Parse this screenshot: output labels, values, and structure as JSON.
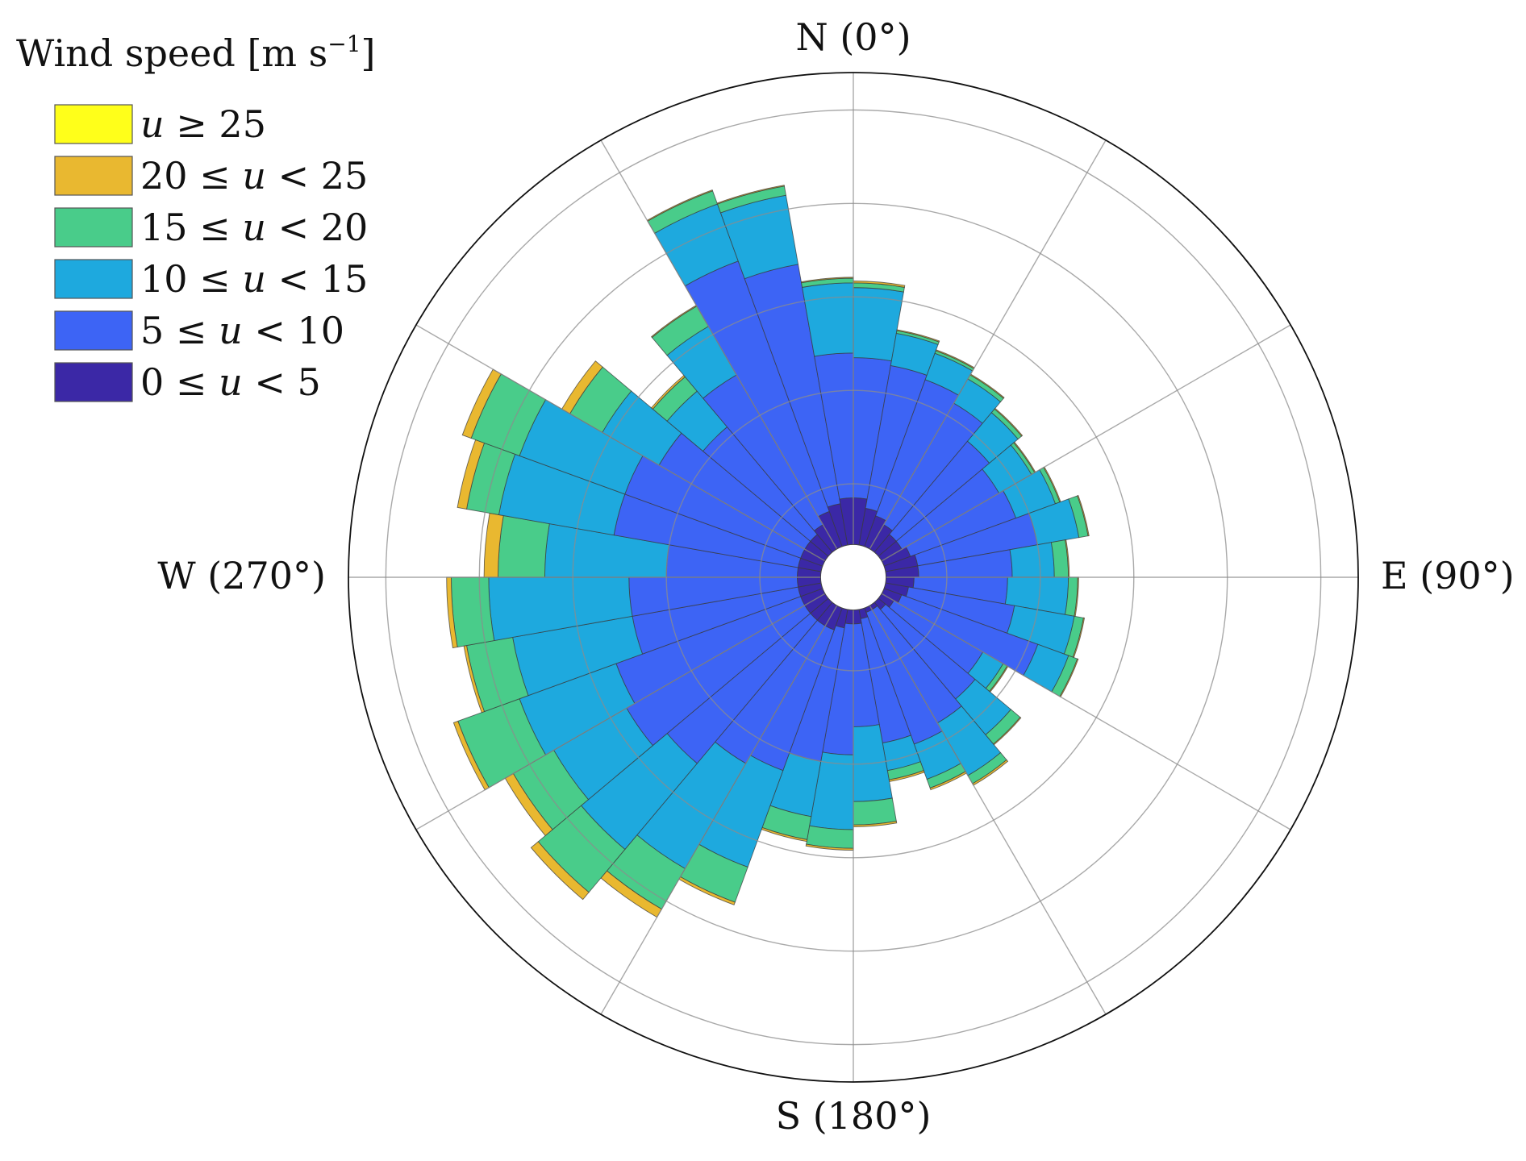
{
  "chart_data": {
    "type": "windrose",
    "title": "",
    "legend": {
      "title_text": "Wind speed [m s",
      "title_exp": "−1",
      "title_close": "]",
      "placement": "top-left",
      "bins": [
        {
          "label": "u ≥ 25",
          "color": "#ffff1a"
        },
        {
          "label": "20 ≤ u < 25",
          "color": "#e9b830"
        },
        {
          "label": "15 ≤ u < 20",
          "color": "#49cc8a"
        },
        {
          "label": "10 ≤ u < 15",
          "color": "#1ea9de"
        },
        {
          "label": "5 ≤ u < 10",
          "color": "#3d64f5"
        },
        {
          "label": "0 ≤ u < 5",
          "color": "#3b28a6"
        }
      ]
    },
    "direction_labels": [
      {
        "text": "N (0°)",
        "angle": 0
      },
      {
        "text": "E (90°)",
        "angle": 90
      },
      {
        "text": "S (180°)",
        "angle": 180
      },
      {
        "text": "W (270°)",
        "angle": 270
      }
    ],
    "spokes_deg": [
      0,
      30,
      60,
      90,
      120,
      150,
      180,
      210,
      240,
      270,
      300,
      330
    ],
    "rings": [
      1,
      2,
      3,
      4,
      5
    ],
    "r_max": 5.4,
    "inner_hole": 0.35,
    "sector_width_deg": 10,
    "sectors": [
      {
        "dir": 5,
        "cum": [
          0.85,
          2.35,
          3.1,
          3.15,
          3.17,
          3.17
        ]
      },
      {
        "dir": 15,
        "cum": [
          0.75,
          2.3,
          2.65,
          2.68,
          2.69,
          2.69
        ]
      },
      {
        "dir": 25,
        "cum": [
          0.7,
          2.25,
          2.55,
          2.58,
          2.59,
          2.59
        ]
      },
      {
        "dir": 35,
        "cum": [
          0.65,
          2.15,
          2.45,
          2.5,
          2.51,
          2.51
        ]
      },
      {
        "dir": 45,
        "cum": [
          0.6,
          1.9,
          2.3,
          2.35,
          2.36,
          2.36
        ]
      },
      {
        "dir": 55,
        "cum": [
          0.6,
          1.8,
          2.2,
          2.24,
          2.25,
          2.25
        ]
      },
      {
        "dir": 65,
        "cum": [
          0.65,
          1.85,
          2.3,
          2.35,
          2.36,
          2.36
        ]
      },
      {
        "dir": 75,
        "cum": [
          0.7,
          2.0,
          2.45,
          2.55,
          2.56,
          2.56
        ]
      },
      {
        "dir": 85,
        "cum": [
          0.7,
          1.7,
          2.15,
          2.3,
          2.31,
          2.31
        ]
      },
      {
        "dir": 95,
        "cum": [
          0.65,
          1.65,
          2.3,
          2.4,
          2.41,
          2.41
        ]
      },
      {
        "dir": 105,
        "cum": [
          0.6,
          1.75,
          2.4,
          2.5,
          2.51,
          2.51
        ]
      },
      {
        "dir": 115,
        "cum": [
          0.55,
          2.1,
          2.45,
          2.55,
          2.56,
          2.56
        ]
      },
      {
        "dir": 125,
        "cum": [
          0.5,
          1.6,
          1.85,
          1.9,
          1.91,
          1.91
        ]
      },
      {
        "dir": 135,
        "cum": [
          0.45,
          1.7,
          2.2,
          2.33,
          2.34,
          2.34
        ]
      },
      {
        "dir": 145,
        "cum": [
          0.4,
          1.8,
          2.45,
          2.55,
          2.57,
          2.57
        ]
      },
      {
        "dir": 155,
        "cum": [
          0.4,
          1.9,
          2.3,
          2.4,
          2.42,
          2.42
        ]
      },
      {
        "dir": 165,
        "cum": [
          0.45,
          1.8,
          2.1,
          2.2,
          2.22,
          2.22
        ]
      },
      {
        "dir": 175,
        "cum": [
          0.5,
          1.6,
          2.4,
          2.65,
          2.67,
          2.67
        ]
      },
      {
        "dir": 185,
        "cum": [
          0.5,
          1.9,
          2.7,
          2.9,
          2.92,
          2.92
        ]
      },
      {
        "dir": 195,
        "cum": [
          0.55,
          2.0,
          2.6,
          2.85,
          2.87,
          2.87
        ]
      },
      {
        "dir": 205,
        "cum": [
          0.6,
          2.2,
          3.3,
          3.7,
          3.73,
          3.73
        ]
      },
      {
        "dir": 215,
        "cum": [
          0.6,
          2.3,
          3.6,
          4.1,
          4.2,
          4.2
        ]
      },
      {
        "dir": 225,
        "cum": [
          0.6,
          2.6,
          3.8,
          4.4,
          4.5,
          4.5
        ]
      },
      {
        "dir": 235,
        "cum": [
          0.6,
          2.8,
          3.7,
          4.2,
          4.3,
          4.3
        ]
      },
      {
        "dir": 245,
        "cum": [
          0.6,
          2.7,
          3.8,
          4.5,
          4.55,
          4.55
        ]
      },
      {
        "dir": 255,
        "cum": [
          0.6,
          2.4,
          3.7,
          4.2,
          4.23,
          4.23
        ]
      },
      {
        "dir": 265,
        "cum": [
          0.6,
          2.4,
          3.9,
          4.3,
          4.35,
          4.35
        ]
      },
      {
        "dir": 275,
        "cum": [
          0.6,
          2.0,
          3.3,
          3.8,
          3.95,
          3.95
        ]
      },
      {
        "dir": 285,
        "cum": [
          0.6,
          2.6,
          3.85,
          4.2,
          4.3,
          4.3
        ]
      },
      {
        "dir": 295,
        "cum": [
          0.6,
          2.6,
          3.8,
          4.35,
          4.45,
          4.45
        ]
      },
      {
        "dir": 305,
        "cum": [
          0.6,
          2.4,
          3.1,
          3.5,
          3.6,
          3.6
        ]
      },
      {
        "dir": 315,
        "cum": [
          0.6,
          2.1,
          2.6,
          2.8,
          2.82,
          2.82
        ]
      },
      {
        "dir": 325,
        "cum": [
          0.65,
          2.5,
          3.1,
          3.35,
          3.36,
          3.36
        ]
      },
      {
        "dir": 335,
        "cum": [
          0.75,
          3.6,
          4.25,
          4.4,
          4.41,
          4.41
        ]
      },
      {
        "dir": 345,
        "cum": [
          0.8,
          3.4,
          4.15,
          4.25,
          4.26,
          4.26
        ]
      },
      {
        "dir": 355,
        "cum": [
          0.85,
          2.4,
          3.15,
          3.2,
          3.21,
          3.21
        ]
      }
    ]
  }
}
